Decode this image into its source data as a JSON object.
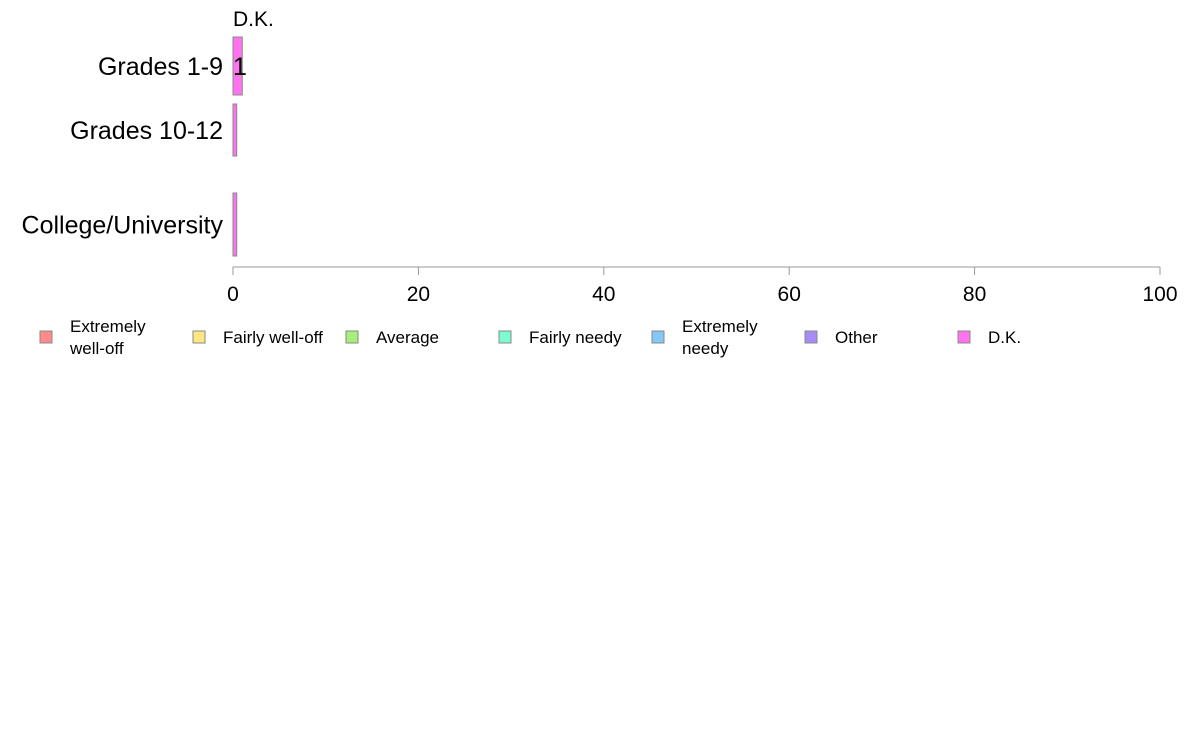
{
  "chart_data": {
    "type": "bar",
    "orientation": "horizontal",
    "stacked": true,
    "categories": [
      "Grades 1-9",
      "Grades 10-12",
      "College/University"
    ],
    "xlim": [
      0,
      100
    ],
    "xticks": [
      0,
      20,
      40,
      60,
      80,
      100
    ],
    "grid": false,
    "legend_position": "bottom",
    "top_annotation": "D.K.",
    "series": [
      {
        "name": "Extremely well-off",
        "legend_lines": [
          "Extremely",
          "well-off"
        ],
        "color": "#ff8a8a",
        "values": [
          0,
          0,
          0
        ]
      },
      {
        "name": "Fairly well-off",
        "legend_lines": [
          "Fairly well-off"
        ],
        "color": "#ffe680",
        "values": [
          0,
          0,
          0
        ]
      },
      {
        "name": "Average",
        "legend_lines": [
          "Average"
        ],
        "color": "#a6f07a",
        "values": [
          0,
          0,
          0
        ]
      },
      {
        "name": "Fairly needy",
        "legend_lines": [
          "Fairly needy"
        ],
        "color": "#7dfccf",
        "values": [
          0,
          0,
          0
        ]
      },
      {
        "name": "Extremely needy",
        "legend_lines": [
          "Extremely",
          "needy"
        ],
        "color": "#85c8f5",
        "values": [
          0,
          0,
          0
        ]
      },
      {
        "name": "Other",
        "legend_lines": [
          "Other"
        ],
        "color": "#a68cf5",
        "values": [
          0,
          0,
          0
        ]
      },
      {
        "name": "D.K.",
        "legend_lines": [
          "D.K."
        ],
        "color": "#ff73ee",
        "values": [
          1,
          0.4,
          0.4
        ]
      }
    ],
    "data_labels": [
      {
        "category": "Grades 1-9",
        "series": "D.K.",
        "text": "1"
      }
    ]
  }
}
